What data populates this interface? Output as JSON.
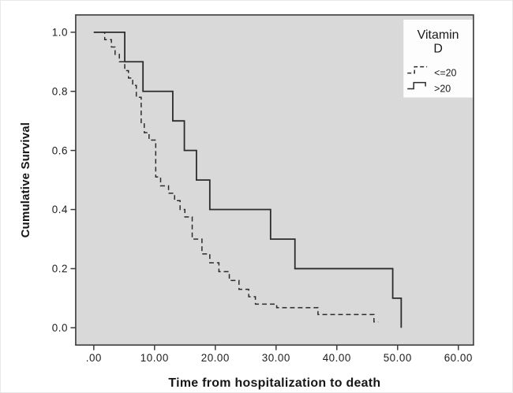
{
  "colors": {
    "plot_background": "#d9d9d9",
    "frame": "#3a3a3a",
    "line": "#2b2b2b",
    "text": "#1c1c1c",
    "legend_background": "#fdfdfd"
  },
  "chart_data": {
    "type": "line",
    "subtype": "kaplan_meier_step",
    "title": "",
    "xlabel": "Time from hospitalization to death",
    "ylabel": "Cumulative Survival",
    "xlim": [
      0,
      60
    ],
    "ylim": [
      0.0,
      1.0
    ],
    "grid": false,
    "x_ticks": [
      {
        "value": 0,
        "label": ".00"
      },
      {
        "value": 10,
        "label": "10.00"
      },
      {
        "value": 20,
        "label": "20.00"
      },
      {
        "value": 30,
        "label": "30.00"
      },
      {
        "value": 40,
        "label": "40.00"
      },
      {
        "value": 50,
        "label": "50.00"
      },
      {
        "value": 60,
        "label": "60.00"
      }
    ],
    "y_ticks": [
      {
        "value": 0.0,
        "label": "0.0"
      },
      {
        "value": 0.2,
        "label": "0.2"
      },
      {
        "value": 0.4,
        "label": "0.4"
      },
      {
        "value": 0.6,
        "label": "0.6"
      },
      {
        "value": 0.8,
        "label": "0.8"
      },
      {
        "value": 1.0,
        "label": "1.0"
      }
    ],
    "legend": {
      "position": "top-right",
      "title_line1": "Vitamin",
      "title_line2": "D",
      "entries": [
        {
          "label": "<=20",
          "line_style": "dashed"
        },
        {
          "label": ">20",
          "line_style": "solid"
        }
      ]
    },
    "series": [
      {
        "name": "<=20",
        "line_style": "dashed",
        "points": [
          [
            0,
            1.0
          ],
          [
            1.8,
            0.975
          ],
          [
            2.9,
            0.95
          ],
          [
            3.5,
            0.925
          ],
          [
            4.2,
            0.9
          ],
          [
            5.1,
            0.87
          ],
          [
            5.7,
            0.845
          ],
          [
            6.4,
            0.82
          ],
          [
            7.0,
            0.78
          ],
          [
            7.8,
            0.69
          ],
          [
            8.3,
            0.66
          ],
          [
            9.1,
            0.635
          ],
          [
            10.2,
            0.51
          ],
          [
            11.0,
            0.48
          ],
          [
            12.3,
            0.455
          ],
          [
            13.3,
            0.43
          ],
          [
            14.2,
            0.4
          ],
          [
            15.0,
            0.375
          ],
          [
            16.2,
            0.3
          ],
          [
            17.8,
            0.25
          ],
          [
            19.1,
            0.22
          ],
          [
            20.6,
            0.19
          ],
          [
            22.3,
            0.16
          ],
          [
            23.9,
            0.13
          ],
          [
            25.5,
            0.105
          ],
          [
            26.6,
            0.08
          ],
          [
            30.1,
            0.068
          ],
          [
            36.9,
            0.045
          ],
          [
            46.1,
            0.02
          ]
        ],
        "end_time": 46.8
      },
      {
        "name": ">20",
        "line_style": "solid",
        "points": [
          [
            0,
            1.0
          ],
          [
            5.1,
            0.9
          ],
          [
            8.1,
            0.8
          ],
          [
            13.0,
            0.7
          ],
          [
            14.9,
            0.6
          ],
          [
            16.9,
            0.5
          ],
          [
            19.1,
            0.4
          ],
          [
            29.1,
            0.3
          ],
          [
            33.1,
            0.2
          ],
          [
            49.2,
            0.1
          ],
          [
            50.6,
            0.0
          ]
        ],
        "end_time": 50.6
      }
    ]
  }
}
